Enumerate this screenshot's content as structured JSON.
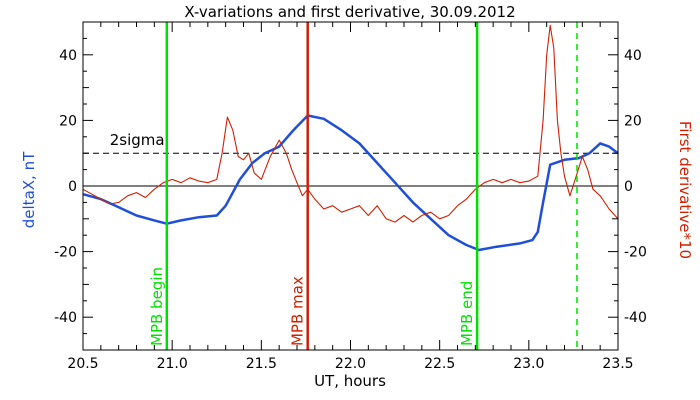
{
  "chart_data": {
    "type": "line",
    "title": "X-variations and first derivative, 30.09.2012",
    "xlabel": "UT, hours",
    "ylabel_left": "deltaX, nT",
    "ylabel_right": "First derivative*10",
    "xlim": [
      20.5,
      23.5
    ],
    "ylim": [
      -50,
      50
    ],
    "x_ticks": [
      "20.5",
      "21.0",
      "21.5",
      "22.0",
      "22.5",
      "23.0",
      "23.5"
    ],
    "y_ticks": [
      "-40",
      "-20",
      "0",
      "20",
      "40"
    ],
    "threshold": {
      "label": "2sigma",
      "y": 10
    },
    "markers": [
      {
        "label": "MPB begin",
        "x": 20.97,
        "color": "#00e000",
        "style": "solid"
      },
      {
        "label": "MPB max",
        "x": 21.76,
        "color": "#d02000",
        "style": "solid"
      },
      {
        "label": "MPB end",
        "x": 22.71,
        "color": "#00e000",
        "style": "solid"
      },
      {
        "label": "",
        "x": 23.27,
        "color": "#00e000",
        "style": "dashed"
      }
    ],
    "series": [
      {
        "color": "#1f4fd6",
        "axis": "left",
        "x": [
          20.5,
          20.6,
          20.7,
          20.8,
          20.9,
          20.97,
          21.05,
          21.15,
          21.25,
          21.3,
          21.38,
          21.45,
          21.52,
          21.6,
          21.68,
          21.76,
          21.85,
          21.95,
          22.05,
          22.15,
          22.25,
          22.35,
          22.45,
          22.55,
          22.65,
          22.72,
          22.82,
          22.95,
          23.02,
          23.05,
          23.08,
          23.12,
          23.2,
          23.28,
          23.34,
          23.4,
          23.45,
          23.5
        ],
        "y": [
          -2.5,
          -4,
          -6.5,
          -9,
          -10.5,
          -11.5,
          -10.5,
          -9.5,
          -9,
          -6,
          2,
          7,
          10,
          12,
          17,
          21.5,
          20.5,
          17,
          13,
          7,
          1,
          -5,
          -10,
          -15,
          -18,
          -19.5,
          -18.5,
          -17.5,
          -16.5,
          -14,
          -5,
          6.5,
          8,
          8.5,
          10,
          13,
          12,
          10
        ]
      },
      {
        "color": "#d02000",
        "axis": "right",
        "x": [
          20.5,
          20.55,
          20.6,
          20.65,
          20.7,
          20.75,
          20.8,
          20.85,
          20.9,
          20.95,
          21.0,
          21.05,
          21.1,
          21.15,
          21.2,
          21.25,
          21.28,
          21.31,
          21.34,
          21.37,
          21.4,
          21.43,
          21.46,
          21.5,
          21.55,
          21.6,
          21.64,
          21.67,
          21.7,
          21.73,
          21.76,
          21.8,
          21.85,
          21.9,
          21.95,
          22.0,
          22.05,
          22.1,
          22.15,
          22.2,
          22.25,
          22.3,
          22.35,
          22.4,
          22.45,
          22.5,
          22.55,
          22.6,
          22.65,
          22.7,
          22.75,
          22.8,
          22.85,
          22.9,
          22.95,
          23.0,
          23.05,
          23.08,
          23.1,
          23.12,
          23.14,
          23.16,
          23.18,
          23.2,
          23.23,
          23.26,
          23.3,
          23.33,
          23.36,
          23.4,
          23.45,
          23.5
        ],
        "y": [
          -1,
          -2.5,
          -4,
          -5.5,
          -5,
          -3,
          -2,
          -3.5,
          -1,
          1,
          2,
          1,
          2.5,
          1.5,
          1,
          2,
          10,
          21,
          17,
          9,
          8,
          10,
          4,
          2,
          9,
          14,
          10,
          5,
          1,
          -3,
          -1,
          -4,
          -7,
          -6,
          -8,
          -7,
          -6,
          -9,
          -6,
          -10,
          -11,
          -9,
          -11,
          -9,
          -8,
          -10,
          -9,
          -6,
          -4,
          -1,
          1,
          2,
          1,
          2,
          1,
          1.5,
          3,
          20,
          40,
          49,
          42,
          20,
          10,
          3,
          -3,
          2,
          9,
          5,
          -1,
          -3,
          -7,
          -10
        ]
      }
    ]
  }
}
